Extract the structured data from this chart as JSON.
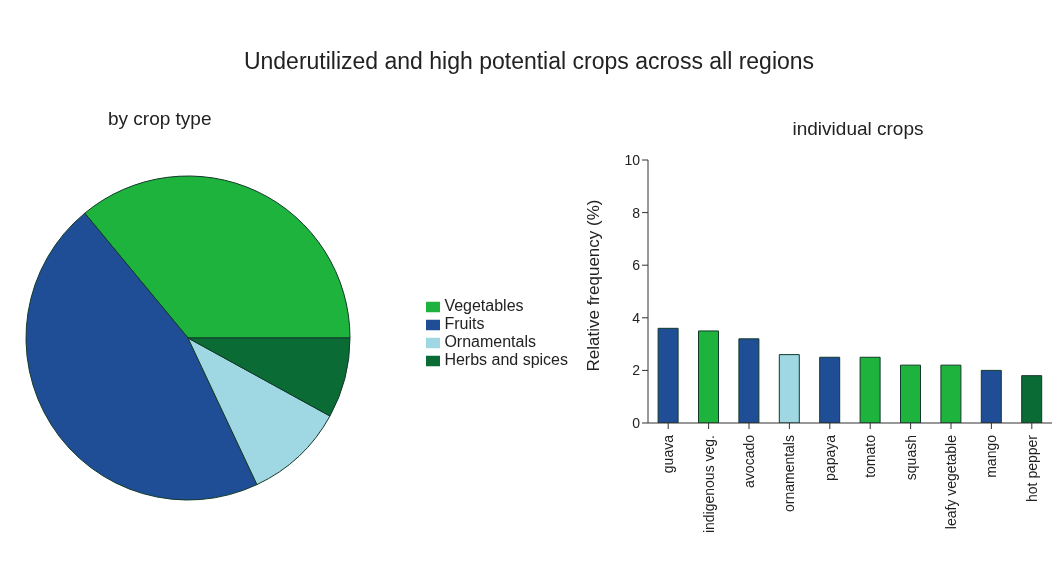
{
  "chart_data": [
    {
      "type": "pie",
      "title": "Underutilized and high potential crops across all regions",
      "subtitle": "by crop type",
      "categories": [
        "Vegetables",
        "Fruits",
        "Ornamentals",
        "Herbs and spices"
      ],
      "values": [
        36,
        46,
        10,
        8
      ],
      "colors": [
        "#1db33c",
        "#1f4e96",
        "#9fd8e3",
        "#0b6b35"
      ],
      "legend": "right"
    },
    {
      "type": "bar",
      "title": "individual crops",
      "ylabel": "Relative frequency (%)",
      "categories": [
        "guava",
        "indigenous veg.",
        "avocado",
        "ornamentals",
        "papaya",
        "tomato",
        "squash",
        "leafy vegetable",
        "mango",
        "hot pepper"
      ],
      "values": [
        3.6,
        3.5,
        3.2,
        2.6,
        2.5,
        2.5,
        2.2,
        2.2,
        2.0,
        1.8
      ],
      "colors": [
        "#1f4e96",
        "#1db33c",
        "#1f4e96",
        "#9fd8e3",
        "#1f4e96",
        "#1db33c",
        "#1db33c",
        "#1db33c",
        "#1f4e96",
        "#0b6b35"
      ],
      "ylim": [
        0,
        10
      ],
      "yticks": [
        0,
        2,
        4,
        6,
        8,
        10
      ]
    }
  ]
}
